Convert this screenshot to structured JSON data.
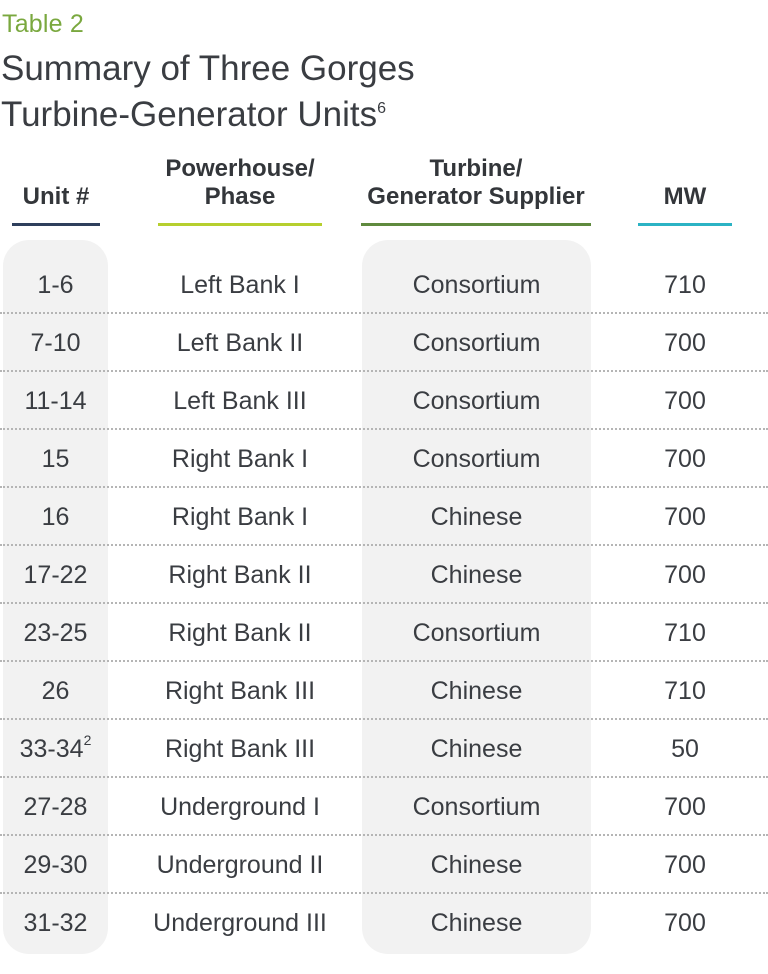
{
  "table_label": "Table 2",
  "title_line1": "Summary of Three Gorges",
  "title_line2": "Turbine-Generator Units",
  "title_footnote": "6",
  "columns": {
    "unit": {
      "line1": "",
      "line2": "Unit #",
      "color": "#2e3f5c"
    },
    "phase": {
      "line1": "Powerhouse/",
      "line2": "Phase",
      "color": "#b6cf2e"
    },
    "supplier": {
      "line1": "Turbine/",
      "line2": "Generator Supplier",
      "color": "#5f8a3e"
    },
    "mw": {
      "line1": "",
      "line2": "MW",
      "color": "#2bb3c4"
    }
  },
  "rows": [
    {
      "unit": "1-6",
      "unit_note": "",
      "phase": "Left Bank I",
      "supplier": "Consortium",
      "mw": "710"
    },
    {
      "unit": "7-10",
      "unit_note": "",
      "phase": "Left Bank II",
      "supplier": "Consortium",
      "mw": "700"
    },
    {
      "unit": "11-14",
      "unit_note": "",
      "phase": "Left Bank III",
      "supplier": "Consortium",
      "mw": "700"
    },
    {
      "unit": "15",
      "unit_note": "",
      "phase": "Right Bank I",
      "supplier": "Consortium",
      "mw": "700"
    },
    {
      "unit": "16",
      "unit_note": "",
      "phase": "Right Bank I",
      "supplier": "Chinese",
      "mw": "700"
    },
    {
      "unit": "17-22",
      "unit_note": "",
      "phase": "Right Bank II",
      "supplier": "Chinese",
      "mw": "700"
    },
    {
      "unit": "23-25",
      "unit_note": "",
      "phase": "Right Bank II",
      "supplier": "Consortium",
      "mw": "710"
    },
    {
      "unit": "26",
      "unit_note": "",
      "phase": "Right Bank III",
      "supplier": "Chinese",
      "mw": "710"
    },
    {
      "unit": "33-34",
      "unit_note": "2",
      "phase": "Right Bank III",
      "supplier": "Chinese",
      "mw": "50"
    },
    {
      "unit": "27-28",
      "unit_note": "",
      "phase": "Underground I",
      "supplier": "Consortium",
      "mw": "700"
    },
    {
      "unit": "29-30",
      "unit_note": "",
      "phase": "Underground II",
      "supplier": "Chinese",
      "mw": "700"
    },
    {
      "unit": "31-32",
      "unit_note": "",
      "phase": "Underground III",
      "supplier": "Chinese",
      "mw": "700"
    }
  ]
}
